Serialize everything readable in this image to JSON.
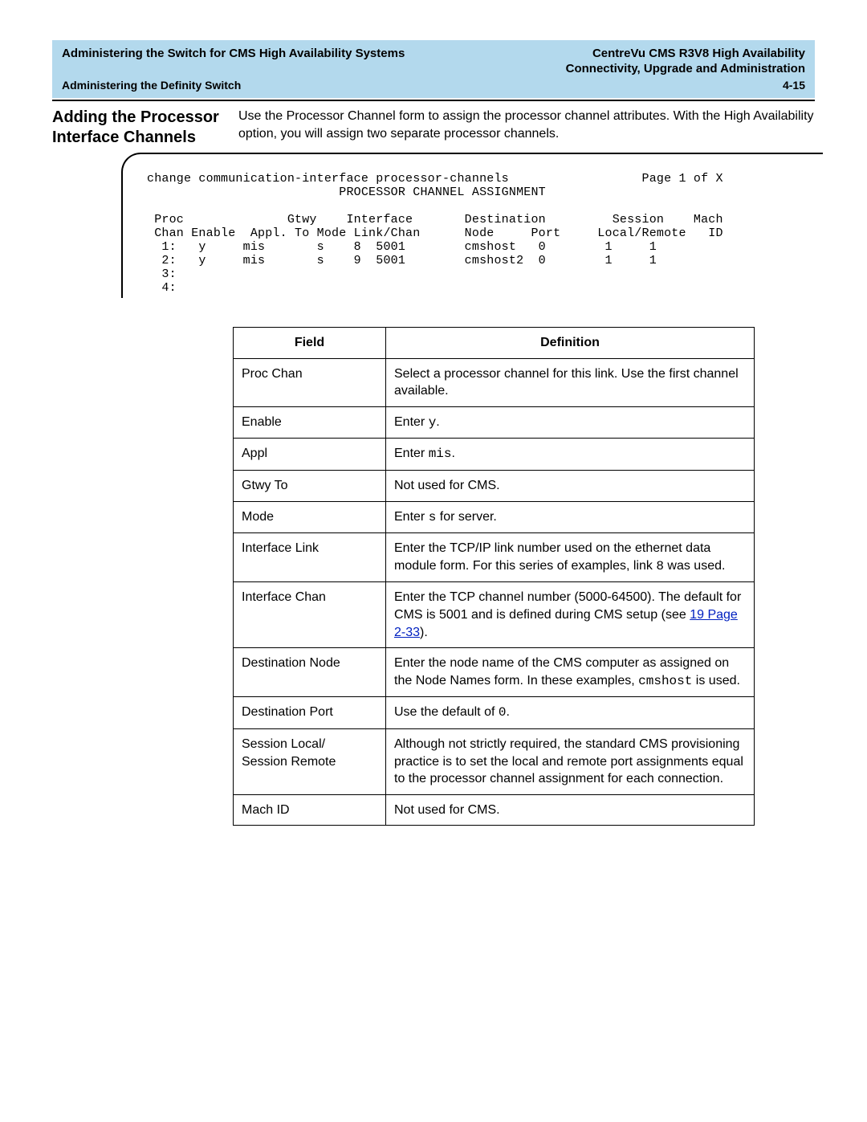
{
  "header": {
    "left_title": "Administering the Switch for CMS High Availability Systems",
    "right_italic": "CentreVu",
    "right_rest": " CMS R3V8 High Availability",
    "subtitle_right": "Connectivity, Upgrade and Administration",
    "left_sub": "Administering the Definity Switch",
    "page_num": "4-15"
  },
  "section": {
    "title": "Adding the Processor Interface Channels",
    "body": "Use the Processor Channel form to assign the processor channel attributes. With the High Availability option, you will assign two separate processor channels."
  },
  "terminal": "change communication-interface processor-channels                  Page 1 of X\n                          PROCESSOR CHANNEL ASSIGNMENT\n\n Proc              Gtwy    Interface       Destination         Session    Mach\n Chan Enable  Appl. To Mode Link/Chan      Node     Port     Local/Remote   ID\n  1:   y     mis       s    8  5001        cmshost   0        1     1\n  2:   y     mis       s    9  5001        cmshost2  0        1     1\n  3:\n  4:",
  "table": {
    "headers": {
      "field": "Field",
      "definition": "Definition"
    },
    "rows": [
      {
        "field": "Proc Chan",
        "def_parts": [
          {
            "t": "Select a processor channel for this link. Use the first channel available."
          }
        ]
      },
      {
        "field": "Enable",
        "def_parts": [
          {
            "t": "Enter "
          },
          {
            "t": "y",
            "mono": true
          },
          {
            "t": "."
          }
        ]
      },
      {
        "field": "Appl",
        "def_parts": [
          {
            "t": "Enter "
          },
          {
            "t": "mis",
            "mono": true
          },
          {
            "t": "."
          }
        ]
      },
      {
        "field": "Gtwy To",
        "def_parts": [
          {
            "t": "Not used for CMS."
          }
        ]
      },
      {
        "field": "Mode",
        "def_parts": [
          {
            "t": "Enter "
          },
          {
            "t": "s",
            "mono": true
          },
          {
            "t": " for server."
          }
        ]
      },
      {
        "field": "Interface Link",
        "def_parts": [
          {
            "t": "Enter the TCP/IP link number used on the ethernet data module form. For this series of examples, link "
          },
          {
            "t": "8",
            "mono": true
          },
          {
            "t": " was used."
          }
        ]
      },
      {
        "field": "Interface Chan",
        "def_parts": [
          {
            "t": "Enter the TCP channel number (5000-64500). The default for CMS is 5001 and is defined during CMS setup (see "
          },
          {
            "t": "19 Page 2-33",
            "link": true
          },
          {
            "t": ")."
          }
        ]
      },
      {
        "field": "Destination Node",
        "def_parts": [
          {
            "t": "Enter the node name of the CMS computer as assigned on the Node Names form. In these examples, "
          },
          {
            "t": "cmshost",
            "mono": true
          },
          {
            "t": " is used."
          }
        ]
      },
      {
        "field": "Destination Port",
        "def_parts": [
          {
            "t": "Use the default of "
          },
          {
            "t": "0",
            "mono": true
          },
          {
            "t": "."
          }
        ]
      },
      {
        "field": "Session Local/\nSession Remote",
        "def_parts": [
          {
            "t": "Although not strictly required, the standard CMS provisioning practice is to set the local and remote port assignments equal to the processor channel assignment for each connection."
          }
        ]
      },
      {
        "field": "Mach ID",
        "def_parts": [
          {
            "t": "Not used for CMS."
          }
        ]
      }
    ]
  }
}
